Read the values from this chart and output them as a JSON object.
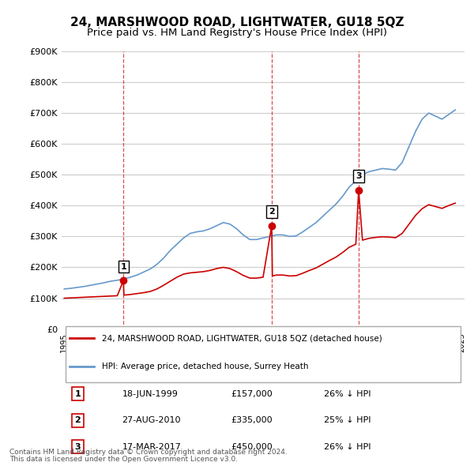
{
  "title": "24, MARSHWOOD ROAD, LIGHTWATER, GU18 5QZ",
  "subtitle": "Price paid vs. HM Land Registry's House Price Index (HPI)",
  "red_label": "24, MARSHWOOD ROAD, LIGHTWATER, GU18 5QZ (detached house)",
  "blue_label": "HPI: Average price, detached house, Surrey Heath",
  "footnote1": "Contains HM Land Registry data © Crown copyright and database right 2024.",
  "footnote2": "This data is licensed under the Open Government Licence v3.0.",
  "ylim": [
    0,
    900000
  ],
  "yticks": [
    0,
    100000,
    200000,
    300000,
    400000,
    500000,
    600000,
    700000,
    800000,
    900000
  ],
  "ytick_labels": [
    "£0",
    "£100K",
    "£200K",
    "£300K",
    "£400K",
    "£500K",
    "£600K",
    "£700K",
    "£800K",
    "£900K"
  ],
  "transactions": [
    {
      "num": 1,
      "date": "18-JUN-1999",
      "price": 157000,
      "note": "26% ↓ HPI",
      "year": 1999.46
    },
    {
      "num": 2,
      "date": "27-AUG-2010",
      "price": 335000,
      "note": "25% ↓ HPI",
      "year": 2010.65
    },
    {
      "num": 3,
      "date": "17-MAR-2017",
      "price": 450000,
      "note": "26% ↓ HPI",
      "year": 2017.21
    }
  ],
  "red_color": "#cc0000",
  "blue_color": "#6699cc",
  "dashed_color": "#cc0000",
  "bg_color": "#ffffff",
  "grid_color": "#cccccc",
  "title_fontsize": 11,
  "subtitle_fontsize": 9.5,
  "hpi_years": [
    1995,
    1995.5,
    1996,
    1996.5,
    1997,
    1997.5,
    1998,
    1998.5,
    1999,
    1999.5,
    2000,
    2000.5,
    2001,
    2001.5,
    2002,
    2002.5,
    2003,
    2003.5,
    2004,
    2004.5,
    2005,
    2005.5,
    2006,
    2006.5,
    2007,
    2007.5,
    2008,
    2008.5,
    2009,
    2009.5,
    2010,
    2010.5,
    2011,
    2011.5,
    2012,
    2012.5,
    2013,
    2013.5,
    2014,
    2014.5,
    2015,
    2015.5,
    2016,
    2016.5,
    2017,
    2017.5,
    2018,
    2018.5,
    2019,
    2019.5,
    2020,
    2020.5,
    2021,
    2021.5,
    2022,
    2022.5,
    2023,
    2023.5,
    2024,
    2024.5
  ],
  "hpi_values": [
    130000,
    132000,
    135000,
    138000,
    142000,
    146000,
    150000,
    155000,
    158000,
    163000,
    168000,
    175000,
    185000,
    195000,
    210000,
    230000,
    255000,
    275000,
    295000,
    310000,
    315000,
    318000,
    325000,
    335000,
    345000,
    340000,
    325000,
    305000,
    290000,
    290000,
    295000,
    300000,
    305000,
    305000,
    300000,
    302000,
    315000,
    330000,
    345000,
    365000,
    385000,
    405000,
    430000,
    460000,
    480000,
    500000,
    510000,
    515000,
    520000,
    518000,
    515000,
    540000,
    590000,
    640000,
    680000,
    700000,
    690000,
    680000,
    695000,
    710000
  ],
  "red_years": [
    1995,
    1995.5,
    1996,
    1996.5,
    1997,
    1997.5,
    1998,
    1998.5,
    1999,
    1999.46,
    1999.5,
    2000,
    2000.5,
    2001,
    2001.5,
    2002,
    2002.5,
    2003,
    2003.5,
    2004,
    2004.5,
    2005,
    2005.5,
    2006,
    2006.5,
    2007,
    2007.5,
    2008,
    2008.5,
    2009,
    2009.5,
    2010,
    2010.65,
    2010.7,
    2011,
    2011.5,
    2012,
    2012.5,
    2013,
    2013.5,
    2014,
    2014.5,
    2015,
    2015.5,
    2016,
    2016.5,
    2017,
    2017.21,
    2017.5,
    2018,
    2018.5,
    2019,
    2019.5,
    2020,
    2020.5,
    2021,
    2021.5,
    2022,
    2022.5,
    2023,
    2023.5,
    2024,
    2024.5
  ],
  "red_values": [
    100000,
    101000,
    102000,
    103000,
    104000,
    105000,
    106000,
    107000,
    108000,
    157000,
    110000,
    112000,
    115000,
    118000,
    122000,
    130000,
    142000,
    155000,
    168000,
    178000,
    182000,
    184000,
    186000,
    190000,
    196000,
    200000,
    196000,
    186000,
    174000,
    165000,
    165000,
    168000,
    335000,
    172000,
    175000,
    175000,
    172000,
    173000,
    181000,
    190000,
    198000,
    210000,
    222000,
    233000,
    248000,
    265000,
    275000,
    450000,
    288000,
    294000,
    297000,
    299000,
    298000,
    296000,
    310000,
    339000,
    368000,
    390000,
    403000,
    397000,
    391000,
    400000,
    408000
  ]
}
